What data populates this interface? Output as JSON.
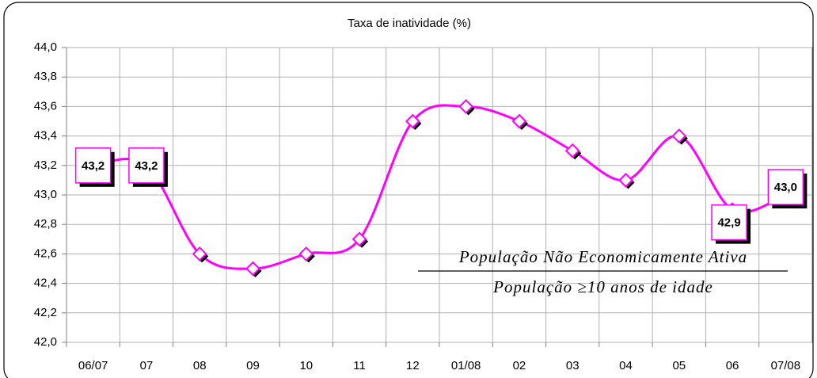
{
  "chart_data": {
    "type": "line",
    "title": "Taxa de inatividade (%)",
    "categories": [
      "06/07",
      "07",
      "08",
      "09",
      "10",
      "11",
      "12",
      "01/08",
      "02",
      "03",
      "04",
      "05",
      "06",
      "07/08"
    ],
    "series": [
      {
        "name": "Taxa de inatividade",
        "color": "#ff00ff",
        "values": [
          43.2,
          43.2,
          42.6,
          42.5,
          42.6,
          42.7,
          43.5,
          43.6,
          43.5,
          43.3,
          43.1,
          43.4,
          42.9,
          43.0
        ],
        "value_labels": [
          "43,2",
          "43,2",
          null,
          null,
          null,
          null,
          null,
          null,
          null,
          null,
          null,
          null,
          "42,9",
          "43,0"
        ]
      }
    ],
    "ylim": [
      42.0,
      44.0
    ],
    "yticks": [
      {
        "value": 42.0,
        "label": "42,0"
      },
      {
        "value": 42.2,
        "label": "42,2"
      },
      {
        "value": 42.4,
        "label": "42,4"
      },
      {
        "value": 42.6,
        "label": "42,6"
      },
      {
        "value": 42.8,
        "label": "42,8"
      },
      {
        "value": 43.0,
        "label": "43,0"
      },
      {
        "value": 43.2,
        "label": "43,2"
      },
      {
        "value": 43.4,
        "label": "43,4"
      },
      {
        "value": 43.6,
        "label": "43,6"
      },
      {
        "value": 43.8,
        "label": "43,8"
      },
      {
        "value": 44.0,
        "label": "44,0"
      }
    ],
    "grid": true,
    "annotations": [
      "População Não Economicamente Ativa",
      "População ≥10 anos de idade"
    ]
  }
}
